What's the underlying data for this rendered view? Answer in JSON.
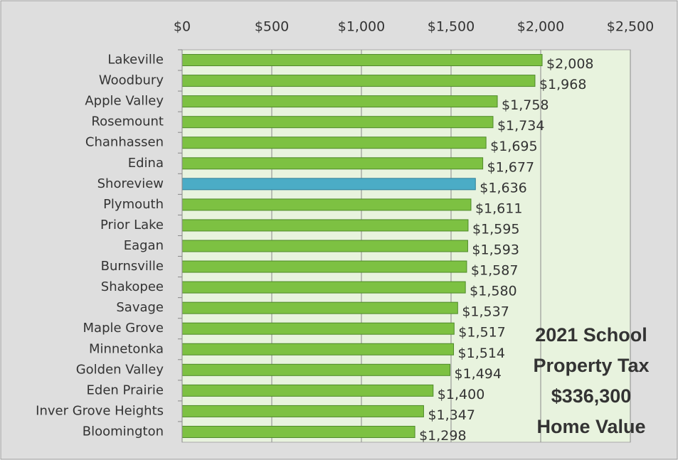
{
  "chart_data": {
    "type": "bar",
    "orientation": "horizontal",
    "categories": [
      "Lakeville",
      "Woodbury",
      "Apple Valley",
      "Rosemount",
      "Chanhassen",
      "Edina",
      "Shoreview",
      "Plymouth",
      "Prior Lake",
      "Eagan",
      "Burnsville",
      "Shakopee",
      "Savage",
      "Maple Grove",
      "Minnetonka",
      "Golden Valley",
      "Eden Prairie",
      "Inver Grove Heights",
      "Bloomington"
    ],
    "values": [
      2008,
      1968,
      1758,
      1734,
      1695,
      1677,
      1636,
      1611,
      1595,
      1593,
      1587,
      1580,
      1537,
      1517,
      1514,
      1494,
      1400,
      1347,
      1298
    ],
    "value_labels": [
      "$2,008",
      "$1,968",
      "$1,758",
      "$1,734",
      "$1,695",
      "$1,677",
      "$1,636",
      "$1,611",
      "$1,595",
      "$1,593",
      "$1,587",
      "$1,580",
      "$1,537",
      "$1,517",
      "$1,514",
      "$1,494",
      "$1,400",
      "$1,347",
      "$1,298"
    ],
    "colors": [
      "#7dc142",
      "#7dc142",
      "#7dc142",
      "#7dc142",
      "#7dc142",
      "#7dc142",
      "#4bacc6",
      "#7dc142",
      "#7dc142",
      "#7dc142",
      "#7dc142",
      "#7dc142",
      "#7dc142",
      "#7dc142",
      "#7dc142",
      "#7dc142",
      "#7dc142",
      "#7dc142",
      "#7dc142"
    ],
    "xlim": [
      0,
      2500
    ],
    "xticks": [
      {
        "value": 0,
        "label": "$0"
      },
      {
        "value": 500,
        "label": "$500"
      },
      {
        "value": 1000,
        "label": "$1,000"
      },
      {
        "value": 1500,
        "label": "$1,500"
      },
      {
        "value": 2000,
        "label": "$2,000"
      },
      {
        "value": 2500,
        "label": "$2,500"
      }
    ],
    "grid": true,
    "annotation": [
      "2021 School",
      "Property Tax",
      "$336,300",
      "Home Value"
    ]
  }
}
